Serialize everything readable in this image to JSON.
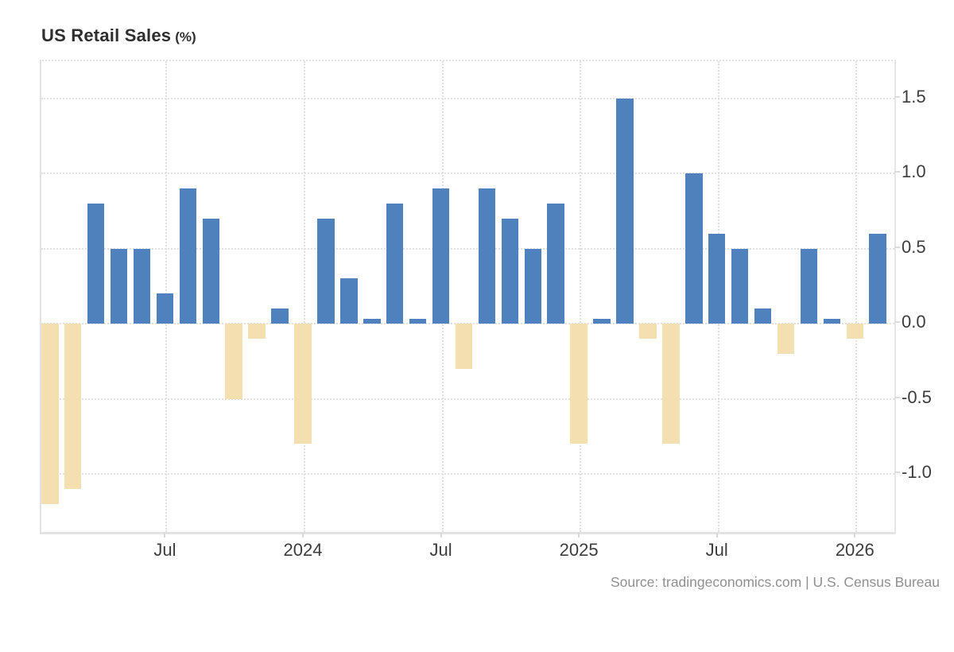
{
  "title": {
    "main": "US Retail Sales",
    "unit": "(%)"
  },
  "source": {
    "text": "Source: tradingeconomics.com | U.S. Census Bureau"
  },
  "colors": {
    "positive_bar": "#4F82BC",
    "negative_bar": "#F4DFB0",
    "gridline": "#E0E0E0",
    "axis_border": "#E2E2E2",
    "tick": "#D9D9D9",
    "axis_text": "#3C3C3C",
    "title_text": "#2E2E2E",
    "source_text": "#8F8F8F",
    "background": "#FFFFFF"
  },
  "y_axis": {
    "tick_labels": [
      "1.5",
      "1.0",
      "0.5",
      "0.0",
      "-0.5",
      "-1.0"
    ],
    "tick_values": [
      1.5,
      1.0,
      0.5,
      0.0,
      -0.5,
      -1.0
    ],
    "side": "right"
  },
  "x_axis": {
    "tick_labels": [
      "Jul",
      "2024",
      "Jul",
      "2025",
      "Jul",
      "2026"
    ],
    "tick_bar_indices": [
      5,
      11,
      17,
      23,
      29,
      35
    ]
  },
  "chart_data": {
    "type": "bar",
    "title": "US Retail Sales (%)",
    "ylabel": "%",
    "ylim": [
      -1.39,
      1.75
    ],
    "grid": true,
    "legend_position": "none",
    "values": [
      -1.2,
      -1.1,
      0.8,
      0.5,
      0.5,
      0.2,
      0.9,
      0.7,
      -0.5,
      -0.1,
      0.1,
      -0.8,
      0.7,
      0.3,
      0.03,
      0.8,
      0.03,
      0.9,
      -0.3,
      0.9,
      0.7,
      0.5,
      0.8,
      -0.8,
      0.03,
      1.5,
      -0.1,
      -0.8,
      1.0,
      0.6,
      0.5,
      0.1,
      -0.2,
      0.5,
      0.03,
      -0.1,
      0.6
    ],
    "x_tick_labels": [
      "Jul",
      "2024",
      "Jul",
      "2025",
      "Jul",
      "2026"
    ],
    "x_tick_indices": [
      5,
      11,
      17,
      23,
      29,
      35
    ],
    "positive_color": "#4F82BC",
    "negative_color": "#F4DFB0"
  }
}
